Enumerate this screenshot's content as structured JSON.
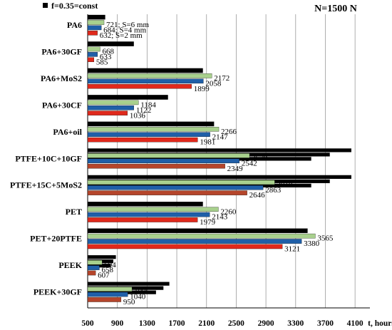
{
  "chart_data": {
    "type": "bar",
    "orientation": "horizontal",
    "legend": {
      "marker_label": "f=0.35=const",
      "position": "top-left"
    },
    "annotation": "N=1500 N",
    "xlabel": "t, hours",
    "xlim": [
      500,
      4300
    ],
    "xticks": [
      500,
      900,
      1300,
      1700,
      2100,
      2500,
      2900,
      3300,
      3700,
      4100
    ],
    "grid": "vertical",
    "series_colors": [
      "#000000",
      "#a8d08d",
      "#1f5fa8",
      "#c00000"
    ],
    "categories": [
      {
        "name": "PA6",
        "bars": [
          {
            "value": 735,
            "color": "#000000"
          },
          {
            "value": 721,
            "color": "#a8d08d"
          },
          {
            "value": 684,
            "color": "#1f5fa8"
          },
          {
            "value": 632,
            "color": "#e0291c"
          }
        ],
        "labels": [
          "721;  S=6  mm",
          "684;  S=4  mm",
          "632;  S=2  mm"
        ]
      },
      {
        "name": "PA6+30GF",
        "bars": [
          {
            "value": 1120,
            "color": "#000000"
          },
          {
            "value": 668,
            "color": "#a8d08d"
          },
          {
            "value": 633,
            "color": "#1f5fa8"
          },
          {
            "value": 585,
            "color": "#e0291c"
          }
        ],
        "labels": [
          "668",
          "633",
          "585"
        ]
      },
      {
        "name": "PA6+MoS2",
        "bars": [
          {
            "value": 2050,
            "color": "#000000"
          },
          {
            "value": 2172,
            "color": "#a8d08d"
          },
          {
            "value": 2058,
            "color": "#1f5fa8"
          },
          {
            "value": 1899,
            "color": "#e0291c"
          }
        ],
        "labels": [
          "2172",
          "2058",
          "1899"
        ]
      },
      {
        "name": "PA6+30CF",
        "bars": [
          {
            "value": 1580,
            "color": "#000000"
          },
          {
            "value": 1184,
            "color": "#a8d08d"
          },
          {
            "value": 1122,
            "color": "#1f5fa8"
          },
          {
            "value": 1036,
            "color": "#e0291c"
          }
        ],
        "labels": [
          "1184",
          "1122",
          "1036"
        ]
      },
      {
        "name": "PA6+oil",
        "bars": [
          {
            "value": 2200,
            "color": "#000000"
          },
          {
            "value": 2266,
            "color": "#a8d08d"
          },
          {
            "value": 2147,
            "color": "#1f5fa8"
          },
          {
            "value": 1981,
            "color": "#e0291c"
          }
        ],
        "labels": [
          "2266",
          "2147",
          "1981"
        ]
      },
      {
        "name": "PTFE+10C+10GF",
        "bars": [
          {
            "value": 4050,
            "color": "#000000"
          },
          {
            "value": 2679,
            "color": "#a8d08d"
          },
          {
            "value": 2542,
            "color": "#1f5fa8"
          },
          {
            "value": 2349,
            "color": "#b5452b"
          }
        ],
        "labels": [
          "2679",
          "2542",
          "2349"
        ],
        "black_bars": [
          4050,
          3760,
          3510
        ]
      },
      {
        "name": "PTFE+15C+5MoS2",
        "bars": [
          {
            "value": 4050,
            "color": "#000000"
          },
          {
            "value": 3018,
            "color": "#a8d08d"
          },
          {
            "value": 2863,
            "color": "#1f5fa8"
          },
          {
            "value": 2646,
            "color": "#b5452b"
          }
        ],
        "labels": [
          "3018",
          "2863",
          "2646"
        ],
        "black_bars": [
          4050,
          3760,
          3510
        ]
      },
      {
        "name": "PET",
        "bars": [
          {
            "value": 2050,
            "color": "#000000"
          },
          {
            "value": 2260,
            "color": "#a8d08d"
          },
          {
            "value": 2143,
            "color": "#1f5fa8"
          },
          {
            "value": 1979,
            "color": "#e0291c"
          }
        ],
        "labels": [
          "2260",
          "2143",
          "1979"
        ]
      },
      {
        "name": "PET+20PTFE",
        "bars": [
          {
            "value": 3460,
            "color": "#000000"
          },
          {
            "value": 3565,
            "color": "#a8d08d"
          },
          {
            "value": 3380,
            "color": "#1f5fa8"
          },
          {
            "value": 3121,
            "color": "#e0291c"
          }
        ],
        "labels": [
          "3565",
          "3380",
          "3121"
        ]
      },
      {
        "name": "PEEK",
        "bars": [
          {
            "value": 880,
            "color": "#000000"
          },
          {
            "value": 694,
            "color": "#a8d08d"
          },
          {
            "value": 658,
            "color": "#1f5fa8"
          },
          {
            "value": 607,
            "color": "#b5452b"
          }
        ],
        "labels": [
          "694",
          "658",
          "607"
        ],
        "black_bars": [
          880,
          845,
          810
        ]
      },
      {
        "name": "PEEK+30GF",
        "bars": [
          {
            "value": 1600,
            "color": "#000000"
          },
          {
            "value": 1096,
            "color": "#a8d08d"
          },
          {
            "value": 1040,
            "color": "#1f5fa8"
          },
          {
            "value": 950,
            "color": "#b5452b"
          }
        ],
        "labels": [
          "1096",
          "1040",
          "950"
        ],
        "black_bars": [
          1600,
          1520,
          1420
        ]
      }
    ]
  }
}
